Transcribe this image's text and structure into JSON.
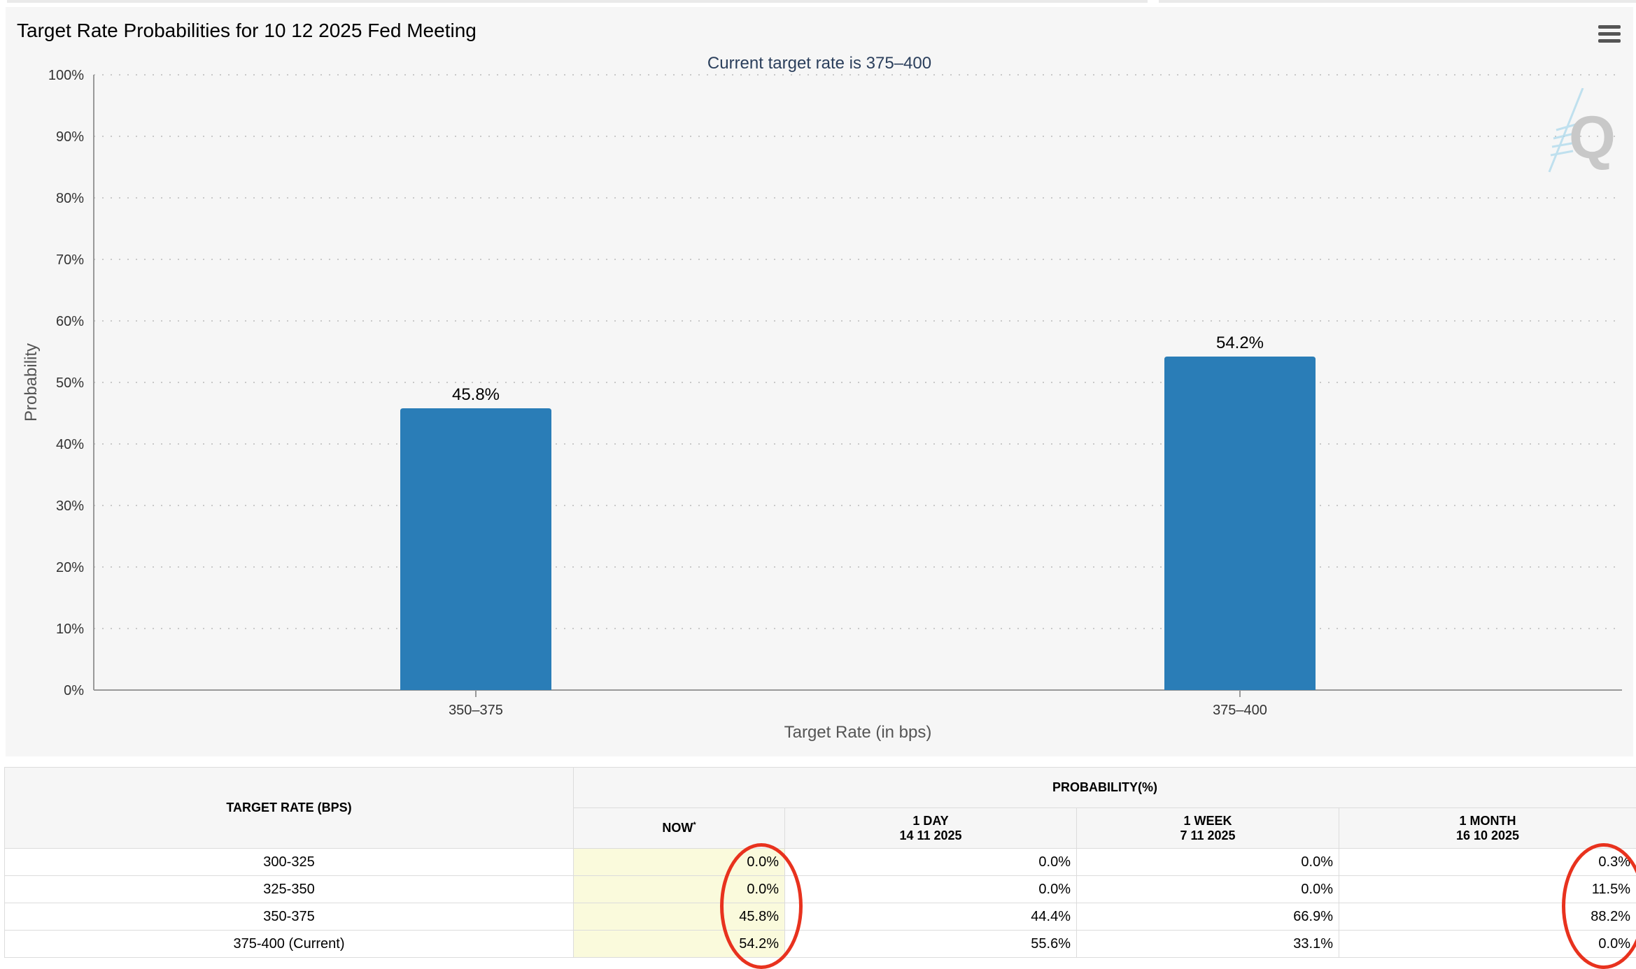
{
  "chart": {
    "title": "Target Rate Probabilities for 10 12 2025 Fed Meeting",
    "subtitle": "Current target rate is 375–400",
    "menu_icon": "hamburger-menu-icon",
    "watermark_icon": "q-logo-icon"
  },
  "chart_data": {
    "type": "bar",
    "title": "Target Rate Probabilities for 10 12 2025 Fed Meeting",
    "subtitle": "Current target rate is 375–400",
    "categories": [
      "350–375",
      "375–400"
    ],
    "values": [
      45.8,
      54.2
    ],
    "data_labels": [
      "45.8%",
      "54.2%"
    ],
    "xlabel": "Target Rate (in bps)",
    "ylabel": "Probability",
    "ylim": [
      0,
      100
    ],
    "yticks": [
      "0%",
      "10%",
      "20%",
      "30%",
      "40%",
      "50%",
      "60%",
      "70%",
      "80%",
      "90%",
      "100%"
    ],
    "grid": true,
    "bar_color": "#2a7db7"
  },
  "table": {
    "target_header": "TARGET RATE (BPS)",
    "prob_header": "PROBABILITY(%)",
    "columns": [
      {
        "line1": "NOW",
        "line2": "",
        "sup": "*"
      },
      {
        "line1": "1 DAY",
        "line2": "14 11 2025",
        "sup": ""
      },
      {
        "line1": "1 WEEK",
        "line2": "7 11 2025",
        "sup": ""
      },
      {
        "line1": "1 MONTH",
        "line2": "16 10 2025",
        "sup": ""
      }
    ],
    "rows": [
      {
        "rate": "300-325",
        "values": [
          "0.0%",
          "0.0%",
          "0.0%",
          "0.3%"
        ]
      },
      {
        "rate": "325-350",
        "values": [
          "0.0%",
          "0.0%",
          "0.0%",
          "11.5%"
        ]
      },
      {
        "rate": "350-375",
        "values": [
          "45.8%",
          "44.4%",
          "66.9%",
          "88.2%"
        ]
      },
      {
        "rate": "375-400 (Current)",
        "values": [
          "54.2%",
          "55.6%",
          "33.1%",
          "0.0%"
        ]
      }
    ],
    "highlight_color": "#fafadc",
    "annotation_color": "#e8321e"
  }
}
